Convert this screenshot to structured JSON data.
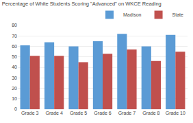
{
  "chart_data": {
    "type": "bar",
    "title": "Percentage of White Students Scoring \"Advanced\" on WKCE Reading",
    "categories": [
      "Grade 3",
      "Grade 4",
      "Grade 5",
      "Grade 6",
      "Grade 7",
      "Grade 8",
      "Grade 10"
    ],
    "series": [
      {
        "name": "Madison",
        "color": "#5b9bd5",
        "values": [
          61,
          64,
          60,
          65,
          72,
          60,
          71
        ]
      },
      {
        "name": "State",
        "color": "#c0504d",
        "values": [
          51,
          51,
          45,
          53,
          57,
          46,
          55
        ]
      }
    ],
    "ylim": [
      0,
      80
    ],
    "yticks": [
      0,
      10,
      20,
      30,
      40,
      50,
      60,
      70,
      80
    ],
    "grid": true,
    "legend": "upper right"
  }
}
